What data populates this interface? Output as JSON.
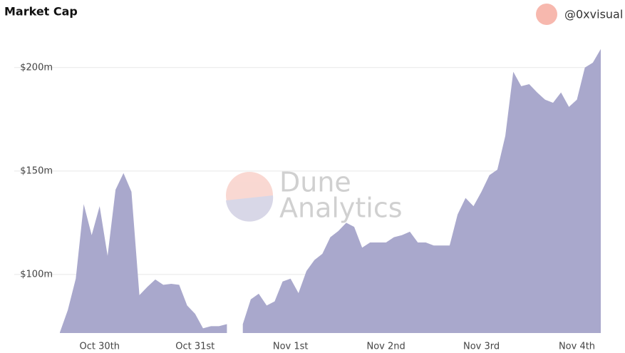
{
  "chart_data": {
    "type": "area",
    "title": "Market Cap",
    "author": "@0xvisual",
    "watermark": [
      "Dune",
      "Analytics"
    ],
    "color": "#a9a8cc",
    "grid": true,
    "categories": [
      null,
      null,
      null,
      null,
      null,
      "Oct 30th",
      null,
      null,
      null,
      null,
      null,
      null,
      null,
      null,
      null,
      null,
      null,
      "Oct 31st",
      null,
      null,
      null,
      null,
      null,
      null,
      null,
      null,
      null,
      null,
      null,
      "Nov 1st",
      null,
      null,
      null,
      null,
      null,
      null,
      null,
      null,
      null,
      null,
      null,
      "Nov 2nd",
      null,
      null,
      null,
      null,
      null,
      null,
      null,
      null,
      null,
      null,
      null,
      "Nov 3rd",
      null,
      null,
      null,
      null,
      null,
      null,
      null,
      null,
      null,
      null,
      null,
      "Nov 4th",
      null,
      null,
      null
    ],
    "values": [
      72,
      82.8,
      98,
      134,
      119,
      133,
      109,
      141,
      149,
      140,
      90,
      94,
      97.6,
      95,
      95.5,
      95,
      85,
      81,
      74,
      75,
      75,
      76,
      null,
      76,
      88,
      90.7,
      85,
      87,
      96.6,
      98,
      91,
      101.7,
      107,
      110,
      118,
      121,
      125,
      123,
      113,
      115.5,
      115.5,
      115.5,
      118,
      119,
      120.7,
      115.5,
      115.5,
      114,
      114,
      114,
      129,
      137,
      133,
      140,
      148,
      150.7,
      167,
      198,
      191,
      192,
      188,
      184.5,
      183,
      188,
      181,
      184.5,
      200,
      202.4,
      209
    ],
    "ylim": [
      71.7,
      212
    ],
    "yticks": [
      {
        "value": 100,
        "label": "$100m"
      },
      {
        "value": 150,
        "label": "$150m"
      },
      {
        "value": 200,
        "label": "$200m"
      }
    ]
  }
}
